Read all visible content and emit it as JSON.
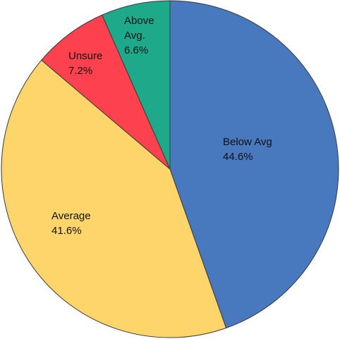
{
  "chart_data": {
    "type": "pie",
    "start_angle_deg": 0,
    "direction": "clockwise",
    "legend": "none",
    "slices": [
      {
        "name": "Below Avg",
        "label": "Below Avg",
        "value": 44.6,
        "value_label": "44.6%",
        "color": "#4878be"
      },
      {
        "name": "Average",
        "label": "Average",
        "value": 41.6,
        "value_label": "41.6%",
        "color": "#fed56b"
      },
      {
        "name": "Unsure",
        "label": "Unsure",
        "value": 7.2,
        "value_label": "7.2%",
        "color": "#fd414f"
      },
      {
        "name": "Above Avg.",
        "label": "Above Avg.",
        "value": 6.6,
        "value_label": "6.6%",
        "color": "#1ea98a"
      }
    ]
  }
}
